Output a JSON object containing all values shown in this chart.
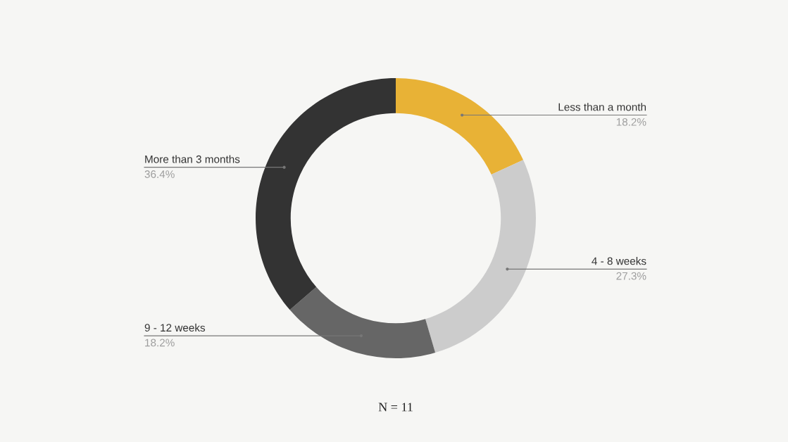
{
  "chart_data": {
    "type": "donut",
    "categories": [
      "Less than a month",
      "4 - 8 weeks",
      "9 - 12 weeks",
      "More than 3 months"
    ],
    "values": [
      18.2,
      27.3,
      18.2,
      36.4
    ],
    "value_labels": [
      "18.2%",
      "27.3%",
      "18.2%",
      "36.4%"
    ],
    "colors": [
      "#e8b236",
      "#cccccc",
      "#666666",
      "#333333"
    ],
    "annotations": [
      "N = 11"
    ]
  }
}
